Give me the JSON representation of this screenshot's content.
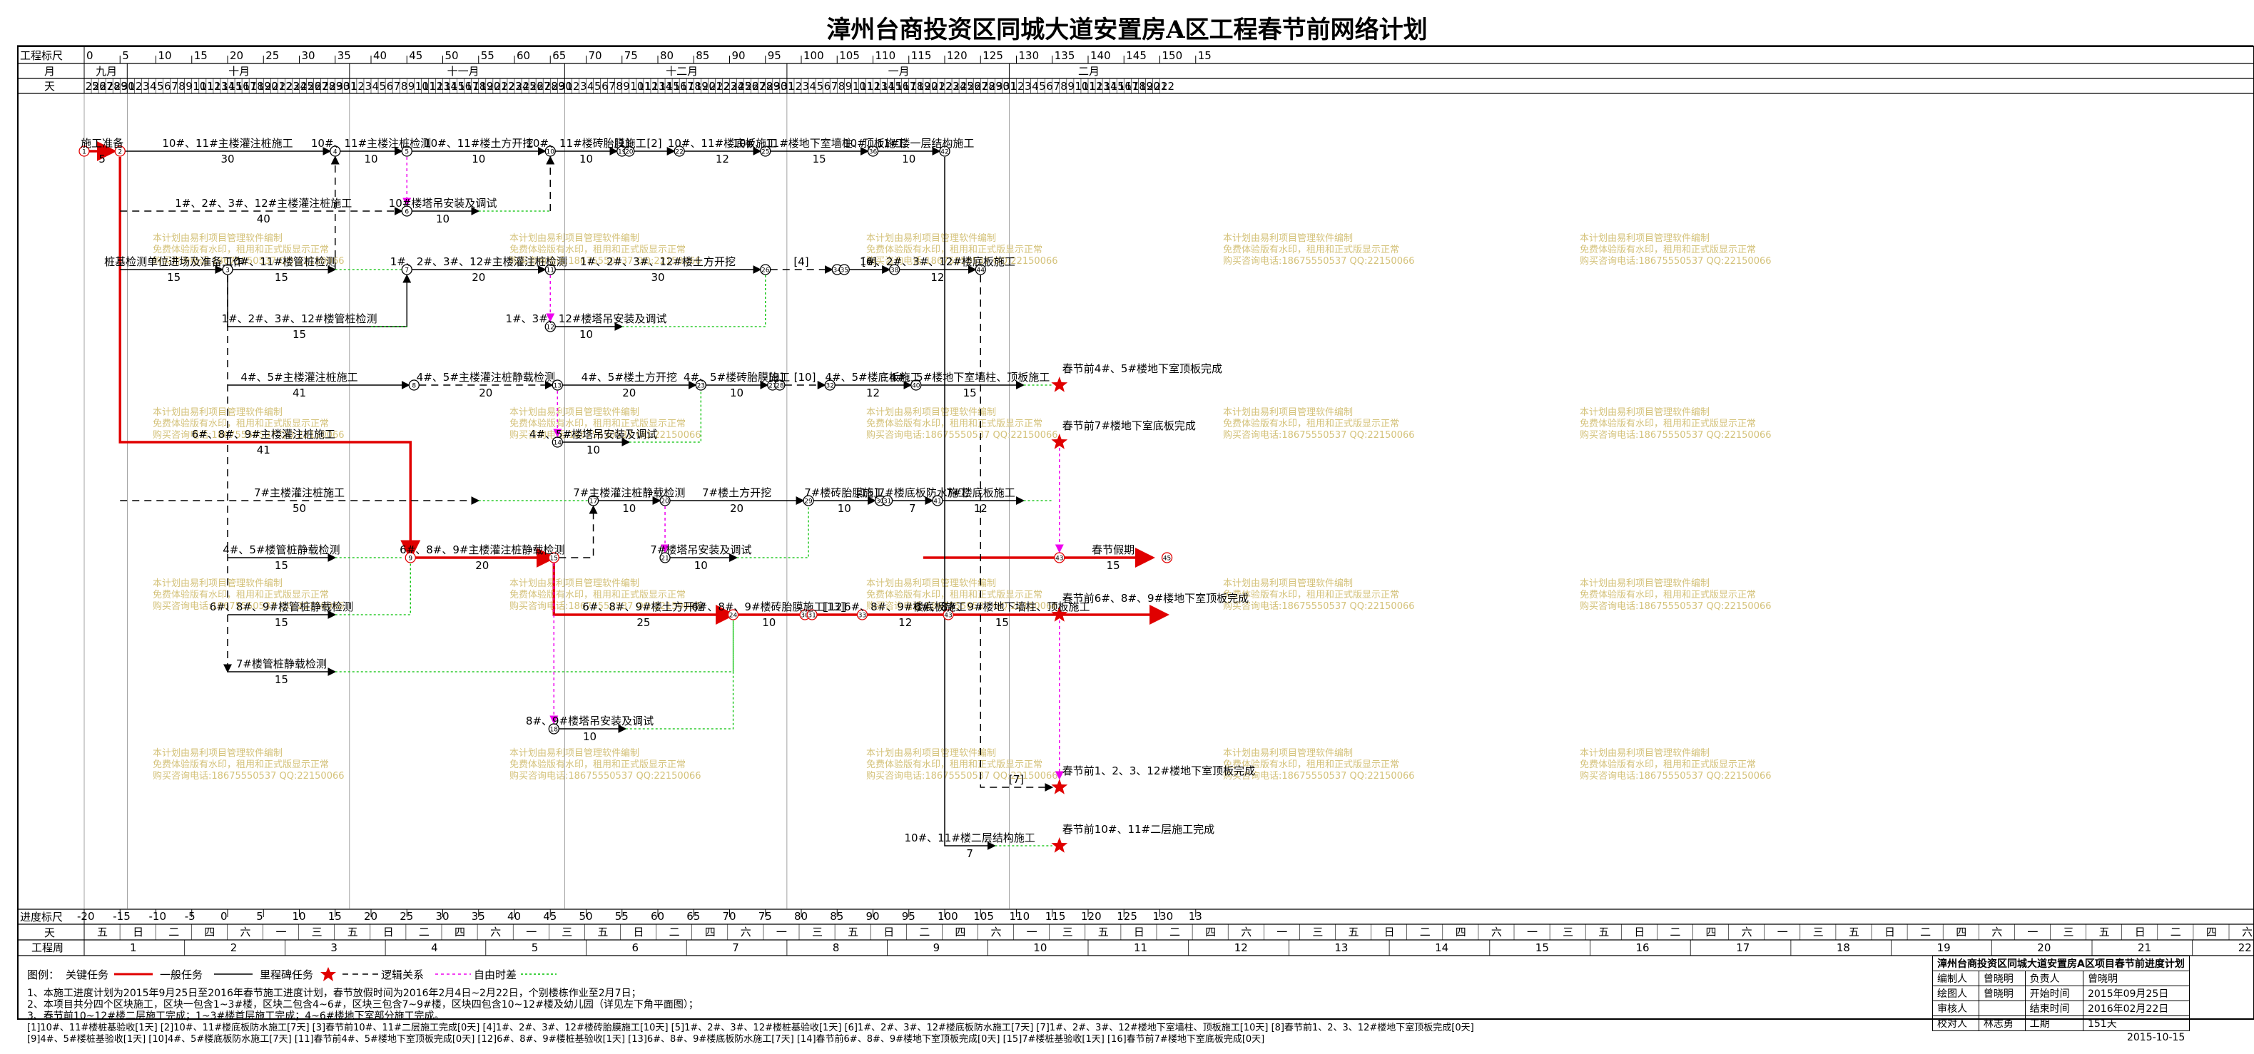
{
  "title": "漳州台商投资区同城大道安置房A区工程春节前网络计划",
  "header": {
    "scale_label": "工程标尺",
    "month_label": "月",
    "day_label": "天",
    "scale_ticks": [
      "0",
      "5",
      "10",
      "15",
      "20",
      "25",
      "30",
      "35",
      "40",
      "45",
      "50",
      "55",
      "60",
      "65",
      "70",
      "75",
      "80",
      "85",
      "90",
      "95",
      "100",
      "105",
      "110",
      "115",
      "120",
      "125",
      "130",
      "135",
      "140",
      "145",
      "150",
      "15"
    ],
    "months": [
      {
        "name": "九月",
        "days": [
          25,
          26,
          27,
          28,
          29,
          30
        ]
      },
      {
        "name": "十月",
        "days": [
          1,
          2,
          3,
          4,
          5,
          6,
          7,
          8,
          9,
          10,
          11,
          12,
          13,
          14,
          15,
          16,
          17,
          18,
          19,
          20,
          21,
          22,
          23,
          24,
          25,
          26,
          27,
          28,
          29,
          30,
          31
        ]
      },
      {
        "name": "十一月",
        "days": [
          1,
          2,
          3,
          4,
          5,
          6,
          7,
          8,
          9,
          10,
          11,
          12,
          13,
          14,
          15,
          16,
          17,
          18,
          19,
          20,
          21,
          22,
          23,
          24,
          25,
          26,
          27,
          28,
          29,
          30
        ]
      },
      {
        "name": "十二月",
        "days": [
          1,
          2,
          3,
          4,
          5,
          6,
          7,
          8,
          9,
          10,
          11,
          12,
          13,
          14,
          15,
          16,
          17,
          18,
          19,
          20,
          21,
          22,
          23,
          24,
          25,
          26,
          27,
          28,
          29,
          30,
          31
        ]
      },
      {
        "name": "一月",
        "days": [
          1,
          2,
          3,
          4,
          5,
          6,
          7,
          8,
          9,
          10,
          11,
          12,
          13,
          14,
          15,
          16,
          17,
          18,
          19,
          20,
          21,
          22,
          23,
          24,
          25,
          26,
          27,
          28,
          29,
          30,
          31
        ]
      },
      {
        "name": "二月",
        "days": [
          1,
          2,
          3,
          4,
          5,
          6,
          7,
          8,
          9,
          10,
          11,
          12,
          13,
          14,
          15,
          16,
          17,
          18,
          19,
          20,
          21,
          22
        ]
      }
    ]
  },
  "footer": {
    "progress_label": "进度标尺",
    "progress_ticks": [
      "-20",
      "-15",
      "-10",
      "-5",
      "0",
      "5",
      "10",
      "15",
      "20",
      "25",
      "30",
      "35",
      "40",
      "45",
      "50",
      "55",
      "60",
      "65",
      "70",
      "75",
      "80",
      "85",
      "90",
      "95",
      "100",
      "105",
      "110",
      "115",
      "120",
      "125",
      "130",
      "13"
    ],
    "day_label": "天",
    "weekday_cycle": [
      "五",
      "日",
      "二",
      "四",
      "六",
      "一",
      "三",
      "五",
      "日",
      "二",
      "四",
      "六",
      "一",
      "三"
    ],
    "week_label": "工程周",
    "weeks": [
      "1",
      "2",
      "3",
      "4",
      "5",
      "6",
      "7",
      "8",
      "9",
      "10",
      "11",
      "12",
      "13",
      "14",
      "15",
      "16",
      "17",
      "18",
      "19",
      "20",
      "21",
      "22"
    ]
  },
  "activities": [
    {
      "label": "施工准备",
      "dur": "5"
    },
    {
      "label": "10#、11#主楼灌注桩施工",
      "dur": "30"
    },
    {
      "label": "10#、11#主楼注桩检测",
      "dur": "10"
    },
    {
      "label": "10#、11#楼土方开挖",
      "dur": "10"
    },
    {
      "label": "10#、11#楼砖胎膜施工",
      "dur": "10"
    },
    {
      "label": "[1]",
      "dur": ""
    },
    {
      "label": "[2]",
      "dur": ""
    },
    {
      "label": "10#、11#楼底板施工",
      "dur": "12"
    },
    {
      "label": "10#、11#楼地下室墙柱、顶板施工",
      "dur": "15"
    },
    {
      "label": "10#、11#楼一层结构施工",
      "dur": "10"
    },
    {
      "label": "1#、2#、3#、12#主楼灌注桩施工",
      "dur": "40"
    },
    {
      "label": "10#楼塔吊安装及调试",
      "dur": "10"
    },
    {
      "label": "桩基检测单位进场及准备工作",
      "dur": "15"
    },
    {
      "label": "10#、11#楼管桩检测",
      "dur": "15"
    },
    {
      "label": "1#、2#、3#、12#主楼灌注桩检测",
      "dur": "20"
    },
    {
      "label": "1#、2#、3#、12#楼土方开挖",
      "dur": "30"
    },
    {
      "label": "[4]",
      "dur": ""
    },
    {
      "label": "[6]",
      "dur": ""
    },
    {
      "label": "1#、2#、3#、12#楼底板施工",
      "dur": "12"
    },
    {
      "label": "1#、2#、3#、12#楼管桩检测",
      "dur": "15"
    },
    {
      "label": "1#、3#、12#楼塔吊安装及调试",
      "dur": "10"
    },
    {
      "label": "4#、5#主楼灌注桩施工",
      "dur": "41"
    },
    {
      "label": "4#、5#主楼灌注桩静载检测",
      "dur": "20"
    },
    {
      "label": "4#、5#楼土方开挖",
      "dur": "20"
    },
    {
      "label": "4#、5#楼砖胎膜施工",
      "dur": "10"
    },
    {
      "label": "[9]",
      "dur": ""
    },
    {
      "label": "[10]",
      "dur": ""
    },
    {
      "label": "4#、5#楼底板施工",
      "dur": "12"
    },
    {
      "label": "4#、5#楼地下室墙柱、顶板施工",
      "dur": "15"
    },
    {
      "label": "4#、5#楼塔吊安装及调试",
      "dur": "10"
    },
    {
      "label": "6#、8#、9#主楼灌注桩施工",
      "dur": "41"
    },
    {
      "label": "7#主楼灌注桩施工",
      "dur": "50"
    },
    {
      "label": "7#主楼灌注桩静载检测",
      "dur": "10"
    },
    {
      "label": "7#楼土方开挖",
      "dur": "20"
    },
    {
      "label": "7#楼砖胎膜施工",
      "dur": "10"
    },
    {
      "label": "[15]7#楼底板防水施工",
      "dur": "7"
    },
    {
      "label": "7#楼底板施工",
      "dur": "12"
    },
    {
      "label": "7#楼塔吊安装及调试",
      "dur": "10"
    },
    {
      "label": "4#、5#楼管桩静载检测",
      "dur": "15"
    },
    {
      "label": "6#、8#、9#主楼灌注桩静载检测",
      "dur": "20"
    },
    {
      "label": "春节假期",
      "dur": "15"
    },
    {
      "label": "6#、8#、9#楼管桩静载检测",
      "dur": "15"
    },
    {
      "label": "6#、8#、9#楼土方开挖",
      "dur": "25"
    },
    {
      "label": "6#、8#、9#楼砖胎膜施工[12]",
      "dur": "10"
    },
    {
      "label": "[13]",
      "dur": ""
    },
    {
      "label": "6#、8#、9#楼底板施工",
      "dur": "12"
    },
    {
      "label": "6#、8#、9#楼地下墙柱、顶板施工",
      "dur": "15"
    },
    {
      "label": "7#楼管桩静载检测",
      "dur": "15"
    },
    {
      "label": "8#、9#楼塔吊安装及调试",
      "dur": "10"
    },
    {
      "label": "[7]",
      "dur": ""
    },
    {
      "label": "10#、11#楼二层结构施工",
      "dur": "7"
    }
  ],
  "milestones": [
    "春节前4#、5#楼地下室顶板完成",
    "春节前7#楼地下室底板完成",
    "春节前6#、8#、9#楼地下室顶板完成",
    "春节前1、2、3、12#楼地下室顶板完成",
    "春节前10#、11#二层施工完成"
  ],
  "watermark": [
    "本计划由易利项目管理软件编制",
    "免费体验版有水印，租用和正式版显示正常",
    "购买咨询电话:18675550537 QQ:22150066"
  ],
  "legend": {
    "label": "图例：",
    "key_task": "关键任务",
    "normal_task": "一般任务",
    "milestone": "里程碑任务",
    "logic": "逻辑关系",
    "free_float": "自由时差",
    "key_color": "#e00000",
    "float_color": "#00c000",
    "milestone_color": "#e00000"
  },
  "notes": [
    "1、本施工进度计划为2015年9月25日至2016年春节施工进度计划，春节放假时间为2016年2月4日~2月22日，个别楼栋作业至2月7日；",
    "2、本项目共分四个区块施工，区块一包含1~3#楼，区块二包含4~6#，区块三包含7~9#楼，区块四包含10~12#楼及幼儿园（详见左下角平面图）；",
    "3、春节前10~12#楼二层施工完成；1~3#楼首层施工完成；4~6#楼地下室部分施工完成。",
    "[1]10#、11#楼桩基验收[1天]  [2]10#、11#楼底板防水施工[7天]  [3]春节前10#、11#二层施工完成[0天]  [4]1#、2#、3#、12#楼砖胎膜施工[10天]  [5]1#、2#、3#、12#楼桩基验收[1天]  [6]1#、2#、3#、12#楼底板防水施工[7天]  [7]1#、2#、3#、12#楼地下室墙柱、顶板施工[10天]  [8]春节前1、2、3、12#楼地下室顶板完成[0天]",
    "[9]4#、5#楼桩基验收[1天]  [10]4#、5#楼底板防水施工[7天]  [11]春节前4#、5#楼地下室顶板完成[0天]  [12]6#、8#、9#楼桩基验收[1天]  [13]6#、8#、9#楼底板防水施工[7天]  [14]春节前6#、8#、9#楼地下室顶板完成[0天]  [15]7#楼桩基验收[1天]  [16]春节前7#楼地下室底板完成[0天]"
  ],
  "info_table": {
    "title": "漳州台商投资区同城大道安置房A区项目春节前进度计划",
    "rows": [
      [
        "编制人",
        "曾晓明",
        "负责人",
        "曾晓明"
      ],
      [
        "绘图人",
        "曾晓明",
        "开始时间",
        "2015年09月25日"
      ],
      [
        "审核人",
        "",
        "结束时间",
        "2016年02月22日"
      ],
      [
        "校对人",
        "林志勇",
        "工期",
        "151天"
      ]
    ],
    "date": "2015-10-15"
  }
}
